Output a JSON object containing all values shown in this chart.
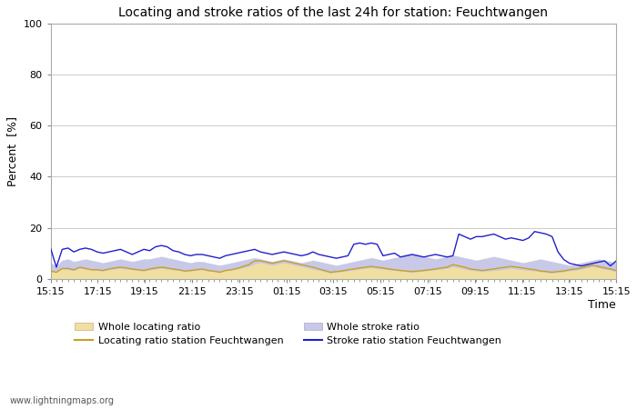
{
  "title": "Locating and stroke ratios of the last 24h for station: Feuchtwangen",
  "xlabel": "Time",
  "ylabel": "Percent  [%]",
  "ylim": [
    0,
    100
  ],
  "yticks": [
    0,
    20,
    40,
    60,
    80,
    100
  ],
  "xtick_labels": [
    "15:15",
    "17:15",
    "19:15",
    "21:15",
    "23:15",
    "01:15",
    "03:15",
    "05:15",
    "07:15",
    "09:15",
    "11:15",
    "13:15",
    "15:15"
  ],
  "watermark": "www.lightningmaps.org",
  "grid_color": "#cccccc",
  "whole_locating_fill_color": "#f0dfa0",
  "whole_stroke_fill_color": "#c8c8e8",
  "locating_line_color": "#c8a020",
  "stroke_line_color": "#2020cc",
  "legend_labels": [
    "Whole locating ratio",
    "Locating ratio station Feuchtwangen",
    "Whole stroke ratio",
    "Stroke ratio station Feuchtwangen"
  ],
  "whole_locating_ratio": [
    2.5,
    2.8,
    3.5,
    3.2,
    2.9,
    3.8,
    3.5,
    3.2,
    3.0,
    2.8,
    3.2,
    3.5,
    3.8,
    3.5,
    3.2,
    3.0,
    2.8,
    3.2,
    3.5,
    3.8,
    3.5,
    3.2,
    3.0,
    2.5,
    2.8,
    3.0,
    3.2,
    2.8,
    2.5,
    2.2,
    3.0,
    3.2,
    3.5,
    4.0,
    4.5,
    5.5,
    6.0,
    5.5,
    5.0,
    5.5,
    6.0,
    5.5,
    5.0,
    4.5,
    4.0,
    3.5,
    3.0,
    2.5,
    2.0,
    2.2,
    2.5,
    2.8,
    3.2,
    3.5,
    3.8,
    4.0,
    3.8,
    3.5,
    3.2,
    3.0,
    2.8,
    2.5,
    2.2,
    2.5,
    2.8,
    3.0,
    3.2,
    3.5,
    3.8,
    4.5,
    4.0,
    3.5,
    3.0,
    2.8,
    2.5,
    2.8,
    3.0,
    3.2,
    3.5,
    3.8,
    3.5,
    3.2,
    3.0,
    2.8,
    2.5,
    2.2,
    2.0,
    2.2,
    2.5,
    2.8,
    3.0,
    3.5,
    4.0,
    4.5,
    4.0,
    3.5,
    3.0,
    2.5
  ],
  "whole_stroke_ratio": [
    6.0,
    4.5,
    7.0,
    7.5,
    6.5,
    7.0,
    7.5,
    7.0,
    6.5,
    6.0,
    6.5,
    7.0,
    7.5,
    7.0,
    6.5,
    7.0,
    7.5,
    7.5,
    8.0,
    8.5,
    8.0,
    7.5,
    7.0,
    6.5,
    6.0,
    6.5,
    6.5,
    6.0,
    5.5,
    5.0,
    5.5,
    6.0,
    6.5,
    7.0,
    7.5,
    8.0,
    7.5,
    7.0,
    6.5,
    7.0,
    7.5,
    7.0,
    6.5,
    6.0,
    6.5,
    7.0,
    6.5,
    6.0,
    5.5,
    5.0,
    5.5,
    6.0,
    6.5,
    7.0,
    7.5,
    8.0,
    7.5,
    7.0,
    7.5,
    8.0,
    8.5,
    9.0,
    9.5,
    9.0,
    8.5,
    8.0,
    7.5,
    8.0,
    8.5,
    9.0,
    8.5,
    8.0,
    7.5,
    7.0,
    7.5,
    8.0,
    8.5,
    8.0,
    7.5,
    7.0,
    6.5,
    6.0,
    6.5,
    7.0,
    7.5,
    7.0,
    6.5,
    6.0,
    5.5,
    5.0,
    5.5,
    6.0,
    6.5,
    7.0,
    7.5,
    7.0,
    6.5,
    6.0
  ],
  "locating_ratio_station": [
    3.0,
    2.5,
    4.0,
    4.0,
    3.5,
    4.5,
    4.0,
    3.5,
    3.5,
    3.2,
    3.8,
    4.2,
    4.5,
    4.2,
    3.8,
    3.5,
    3.2,
    3.8,
    4.2,
    4.5,
    4.2,
    3.8,
    3.5,
    3.0,
    3.2,
    3.5,
    3.8,
    3.2,
    3.0,
    2.5,
    3.2,
    3.5,
    4.0,
    4.8,
    5.5,
    7.0,
    7.0,
    6.5,
    6.0,
    6.5,
    7.0,
    6.5,
    6.0,
    5.5,
    5.0,
    4.5,
    3.8,
    3.2,
    2.5,
    2.8,
    3.0,
    3.5,
    3.8,
    4.2,
    4.5,
    4.8,
    4.5,
    4.2,
    3.8,
    3.5,
    3.2,
    3.0,
    2.8,
    3.0,
    3.2,
    3.5,
    3.8,
    4.2,
    4.5,
    5.5,
    5.0,
    4.5,
    3.8,
    3.5,
    3.2,
    3.5,
    3.8,
    4.2,
    4.5,
    4.8,
    4.5,
    4.2,
    3.8,
    3.5,
    3.0,
    2.8,
    2.5,
    2.8,
    3.0,
    3.5,
    3.8,
    4.2,
    4.8,
    5.2,
    4.8,
    4.2,
    3.8,
    3.2
  ],
  "stroke_ratio_station": [
    12.0,
    4.5,
    11.5,
    12.0,
    10.5,
    11.5,
    12.0,
    11.5,
    10.5,
    10.0,
    10.5,
    11.0,
    11.5,
    10.5,
    9.5,
    10.5,
    11.5,
    11.0,
    12.5,
    13.0,
    12.5,
    11.0,
    10.5,
    9.5,
    9.0,
    9.5,
    9.5,
    9.0,
    8.5,
    8.0,
    9.0,
    9.5,
    10.0,
    10.5,
    11.0,
    11.5,
    10.5,
    10.0,
    9.5,
    10.0,
    10.5,
    10.0,
    9.5,
    9.0,
    9.5,
    10.5,
    9.5,
    9.0,
    8.5,
    8.0,
    8.5,
    9.0,
    13.5,
    14.0,
    13.5,
    14.0,
    13.5,
    9.0,
    9.5,
    10.0,
    8.5,
    9.0,
    9.5,
    9.0,
    8.5,
    9.0,
    9.5,
    9.0,
    8.5,
    9.0,
    17.5,
    16.5,
    15.5,
    16.5,
    16.5,
    17.0,
    17.5,
    16.5,
    15.5,
    16.0,
    15.5,
    15.0,
    16.0,
    18.5,
    18.0,
    17.5,
    16.5,
    10.5,
    7.5,
    6.0,
    5.5,
    5.0,
    5.5,
    6.0,
    6.5,
    7.0,
    5.0,
    7.0
  ]
}
